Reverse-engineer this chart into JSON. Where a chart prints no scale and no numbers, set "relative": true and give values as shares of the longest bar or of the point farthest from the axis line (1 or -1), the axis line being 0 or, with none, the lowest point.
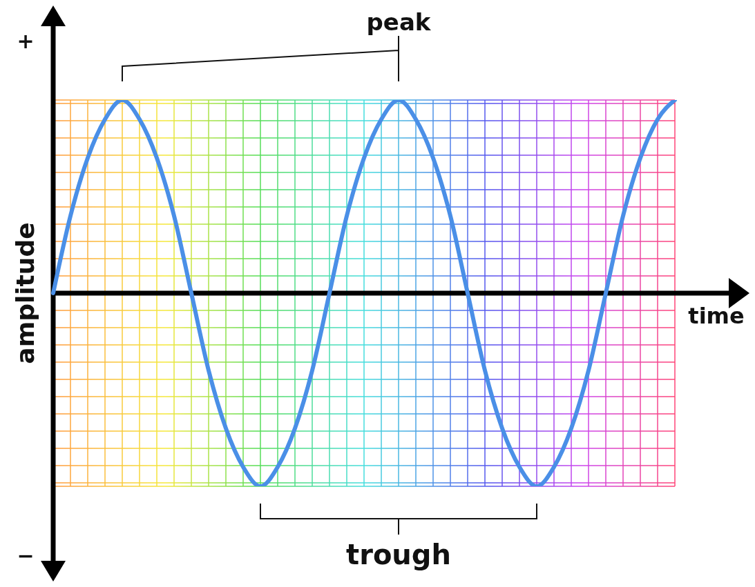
{
  "chart_data": {
    "type": "line",
    "relative": true,
    "xlabel": "time",
    "ylabel": "amplitude",
    "grid": true,
    "marker": "none",
    "line_style": "solid",
    "categories": [
      null,
      null,
      null,
      null,
      null,
      null,
      null,
      null,
      null,
      null,
      null,
      null,
      null,
      null,
      null,
      null,
      null,
      null,
      null,
      null,
      null,
      null,
      null,
      null,
      null,
      null,
      null,
      null,
      null,
      null,
      null,
      null,
      null,
      null,
      null,
      null,
      null
    ],
    "series": [
      {
        "color": "#4a8fe7",
        "values": [
          0,
          0.4,
          0.7,
          0.9,
          1,
          0.9,
          0.7,
          0.4,
          0,
          -0.4,
          -0.7,
          -0.9,
          -1,
          -0.9,
          -0.7,
          -0.4,
          0,
          0.4,
          0.7,
          0.9,
          1,
          0.9,
          0.7,
          0.4,
          0,
          -0.4,
          -0.7,
          -0.9,
          -1,
          -0.9,
          -0.7,
          -0.4,
          0,
          0.4,
          0.7,
          0.9,
          1
        ]
      }
    ],
    "annotations": [
      "peak",
      "trough",
      "+",
      "−"
    ]
  }
}
